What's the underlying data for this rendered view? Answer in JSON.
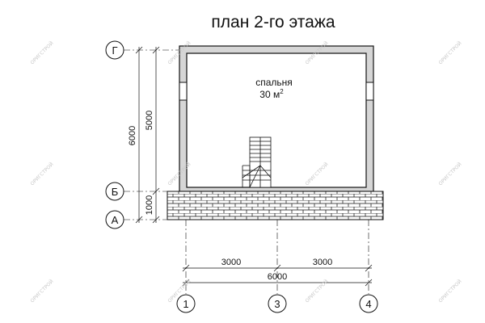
{
  "title": "план 2-го этажа",
  "room": {
    "name": "спальня",
    "area_value": "30 м",
    "area_sup": "2"
  },
  "axes": {
    "rows": [
      "Г",
      "Б",
      "А"
    ],
    "cols": [
      "1",
      "3",
      "4"
    ]
  },
  "dimensions": {
    "vertical_total": "6000",
    "vertical_room": "5000",
    "vertical_porch": "1000",
    "horizontal_left": "3000",
    "horizontal_right": "3000",
    "horizontal_total": "6000"
  },
  "watermark": "ОРИГСТРОЙ",
  "colors": {
    "wall": "#d6d6d6",
    "line": "#111111",
    "watermark": "#c9c9c9"
  }
}
